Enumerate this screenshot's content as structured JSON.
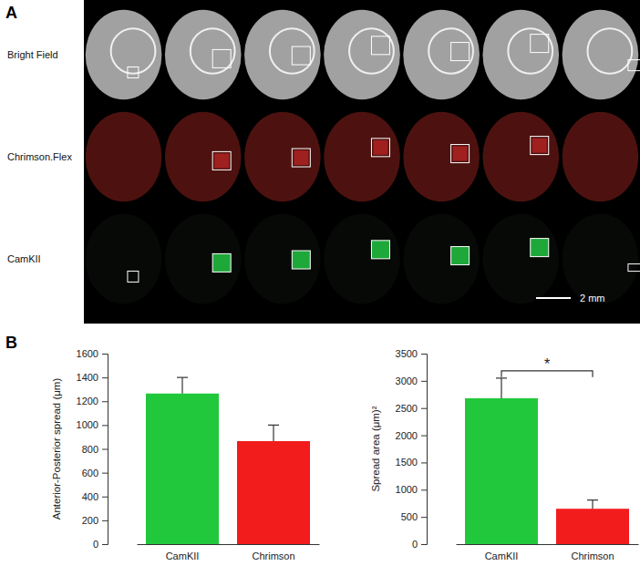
{
  "panel_labels": [
    "A",
    "B"
  ],
  "image_panel": {
    "row_labels": [
      "Bright Field",
      "Chrimson.Flex",
      "CamKII"
    ],
    "scale_bar_label": "2 mm"
  },
  "chart_data": [
    {
      "type": "bar",
      "categories": [
        "CamKII",
        "Chrimson"
      ],
      "values": [
        1265,
        865
      ],
      "errors": [
        135,
        135
      ],
      "colors": [
        "#22c83c",
        "#f21c1c"
      ],
      "ylabel": "Anterior-Posterior spread (μm)",
      "ylim": [
        0,
        1600
      ],
      "yticks": [
        0,
        200,
        400,
        600,
        800,
        1000,
        1200,
        1400,
        1600
      ]
    },
    {
      "type": "bar",
      "categories": [
        "CamKII",
        "Chrimson"
      ],
      "values": [
        2680,
        650
      ],
      "errors": [
        370,
        160
      ],
      "colors": [
        "#22c83c",
        "#f21c1c"
      ],
      "ylabel": "Spread area (μm)²",
      "ylim": [
        0,
        3500
      ],
      "yticks": [
        0,
        500,
        1000,
        1500,
        2000,
        2500,
        3000,
        3500
      ],
      "significance": {
        "label": "*",
        "pair": [
          0,
          1
        ]
      }
    }
  ]
}
